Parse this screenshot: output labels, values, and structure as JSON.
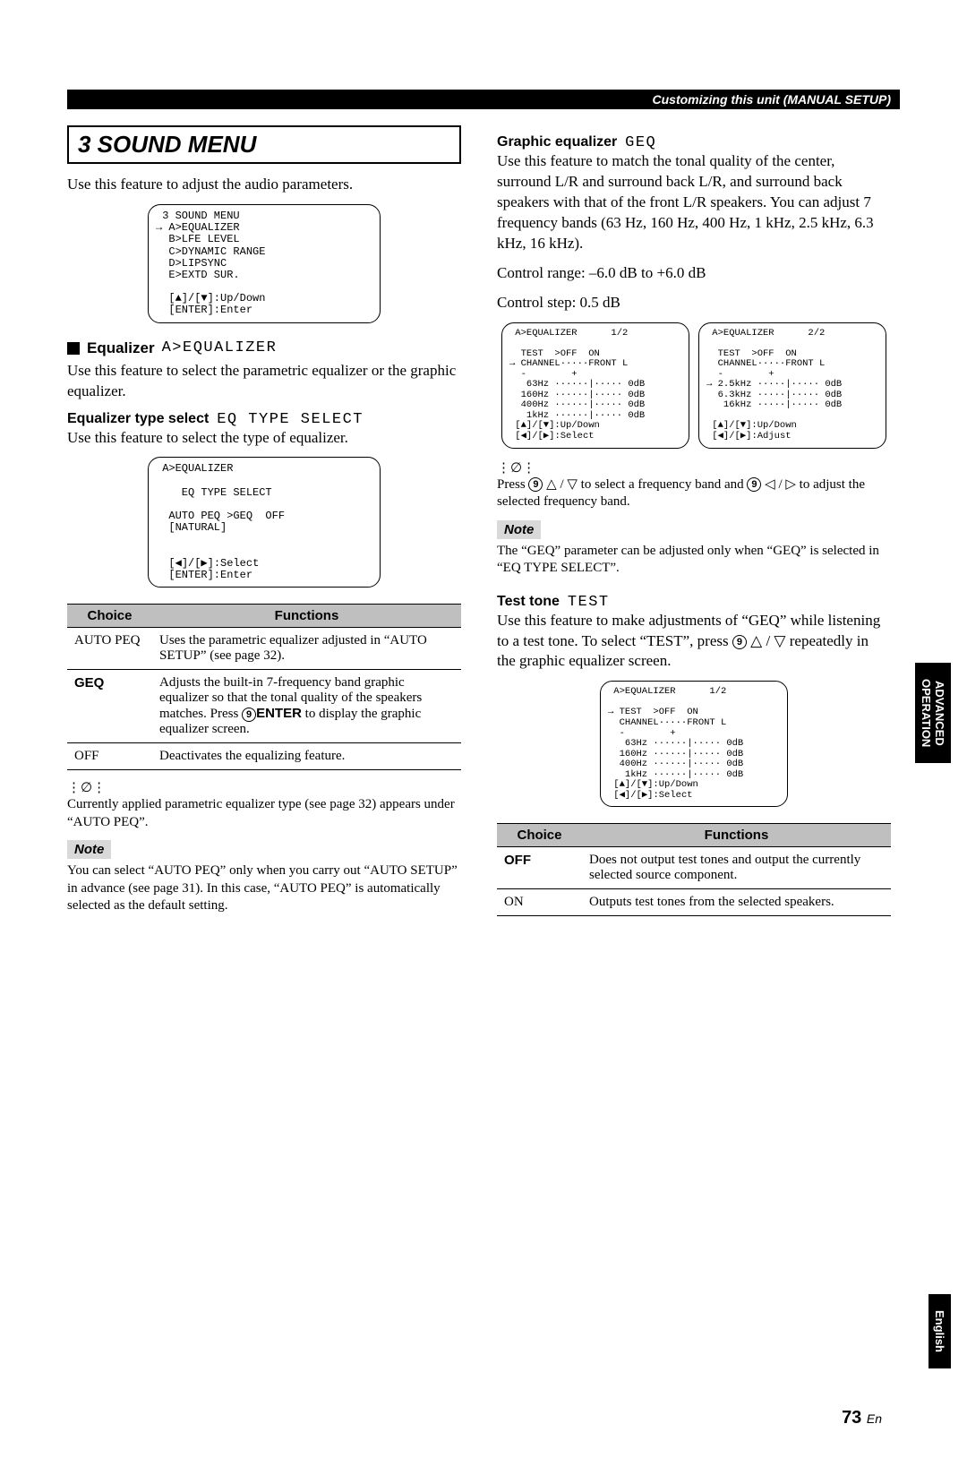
{
  "top_bar": "Customizing this unit (MANUAL SETUP)",
  "side_tab_1_l1": "ADVANCED",
  "side_tab_1_l2": "OPERATION",
  "side_tab_2": "English",
  "page_num_big": "73",
  "page_num_small": "En",
  "left": {
    "title": "3 SOUND MENU",
    "intro": "Use this feature to adjust the audio parameters.",
    "screen1": " 3 SOUND MENU\n→ A>EQUALIZER\n  B>LFE LEVEL\n  C>DYNAMIC RANGE\n  D>LIPSYNC\n  E>EXTD SUR.\n\n  [▲]/[▼]:Up/Down\n  [ENTER]:Enter",
    "h_eq": "Equalizer",
    "h_eq_mono": "A>EQUALIZER",
    "p_eq": "Use this feature to select the parametric equalizer or the graphic equalizer.",
    "h_eqtype": "Equalizer type select",
    "h_eqtype_mono": "EQ TYPE SELECT",
    "p_eqtype": "Use this feature to select the type of equalizer.",
    "screen2": " A>EQUALIZER\n\n    EQ TYPE SELECT\n\n  AUTO PEQ >GEQ  OFF\n  [NATURAL]\n\n\n  [◀]/[▶]:Select\n  [ENTER]:Enter",
    "table1": {
      "head_c": "Choice",
      "head_f": "Functions",
      "rows": [
        {
          "c": "AUTO PEQ",
          "bold": false,
          "f": "Uses the parametric equalizer adjusted in “AUTO SETUP” (see page 32)."
        },
        {
          "c": "GEQ",
          "bold": true,
          "f_html": "Adjusts the built-in 7-frequency band graphic equalizer so that the tonal quality of the speakers matches. Press <span class=\"circled-num\">9</span><b style=\"font-family:Arial\">ENTER</b> to display the graphic equalizer screen."
        },
        {
          "c": "OFF",
          "bold": false,
          "f": "Deactivates the equalizing feature."
        }
      ]
    },
    "tip1": "Currently applied parametric equalizer type (see page 32) appears under “AUTO PEQ”.",
    "note_label": "Note",
    "note1": "You can select “AUTO PEQ” only when you carry out “AUTO SETUP” in advance (see page 31). In this case, “AUTO PEQ” is automatically selected as the default setting."
  },
  "right": {
    "h_geq": "Graphic equalizer",
    "h_geq_mono": "GEQ",
    "p_geq": "Use this feature to match the tonal quality of the center, surround L/R and surround back L/R, and surround back speakers with that of the front L/R speakers. You can adjust 7 frequency bands (63 Hz, 160 Hz, 400 Hz, 1 kHz, 2.5 kHz, 6.3 kHz, 16 kHz).",
    "p_range": "Control range: –6.0 dB to +6.0 dB",
    "p_step": "Control step: 0.5 dB",
    "screenA": " A>EQUALIZER      1/2\n\n  TEST  >OFF  ON\n→ CHANNEL·····FRONT L\n  -        +\n   63Hz ······|····· 0dB\n  160Hz ······|····· 0dB\n  400Hz ······|····· 0dB\n   1kHz ······|····· 0dB\n [▲]/[▼]:Up/Down\n [◀]/[▶]:Select",
    "screenB": " A>EQUALIZER      2/2\n\n  TEST  >OFF  ON\n  CHANNEL·····FRONT L\n  -        +\n→ 2.5kHz ·····|····· 0dB\n  6.3kHz ·····|····· 0dB\n   16kHz ·····|····· 0dB\n\n [▲]/[▼]:Up/Down\n [◀]/[▶]:Adjust",
    "tip2_pre": "Press ",
    "tip2_mid1": "△ / ▽ to select a frequency band and ",
    "tip2_mid2": "◁ / ▷ to adjust the selected frequency band.",
    "note_label": "Note",
    "note2": "The “GEQ” parameter can be adjusted only when “GEQ” is selected in “EQ TYPE SELECT”.",
    "h_test": "Test tone",
    "h_test_mono": "TEST",
    "p_test_pre": "Use this feature to make adjustments of “GEQ” while listening to a test tone. To select “TEST”, press ",
    "p_test_post": "△ / ▽ repeatedly in the graphic equalizer screen.",
    "screenC": " A>EQUALIZER      1/2\n\n→ TEST  >OFF  ON\n  CHANNEL·····FRONT L\n  -        +\n   63Hz ······|····· 0dB\n  160Hz ······|····· 0dB\n  400Hz ······|····· 0dB\n   1kHz ······|····· 0dB\n [▲]/[▼]:Up/Down\n [◀]/[▶]:Select",
    "table2": {
      "head_c": "Choice",
      "head_f": "Functions",
      "rows": [
        {
          "c": "OFF",
          "bold": true,
          "f": "Does not output test tones and output the currently selected source component."
        },
        {
          "c": "ON",
          "bold": false,
          "f": "Outputs test tones from the selected speakers."
        }
      ]
    }
  }
}
